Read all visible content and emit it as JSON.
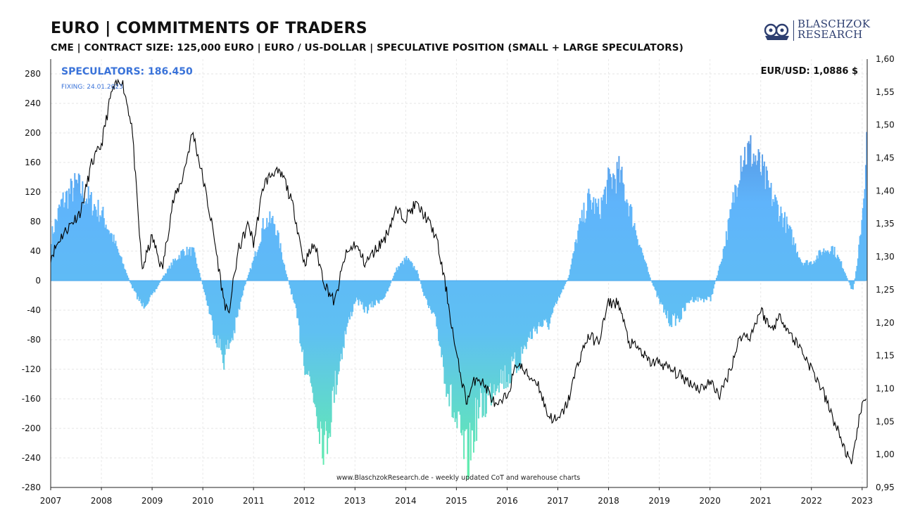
{
  "header": {
    "title": "EURO | COMMITMENTS OF TRADERS",
    "subtitle": "CME | CONTRACT SIZE: 125,000  EURO | EURO / US-DOLLAR | SPECULATIVE  POSITION (SMALL + LARGE SPECULATORS)"
  },
  "logo": {
    "line1": "BLASCHZOK",
    "line2": "RESEARCH"
  },
  "labels": {
    "speculators": "SPECULATORS: 186.450",
    "fixing": "FIXING: 24.01.2023",
    "eurusd": "EUR/USD: 1,0886 $",
    "footer": "www.BlaschzokResearch.de - weekly updated CoT and warehouse charts"
  },
  "colors": {
    "bar_top": "#4f7fce",
    "bar_mid": "#5fb4fb",
    "bar_bottom": "#62f2a6",
    "line": "#000000",
    "text_accent": "#3a73d9"
  },
  "chart_data": {
    "type": "bar",
    "title": "EURO | COMMITMENTS OF TRADERS",
    "xlabel": "",
    "ylabel": "",
    "x_ticks": [
      "2007",
      "2008",
      "2009",
      "2010",
      "2011",
      "2012",
      "2013",
      "2014",
      "2015",
      "2016",
      "2017",
      "2018",
      "2019",
      "2020",
      "2021",
      "2022",
      "2023"
    ],
    "y_left_ticks": [
      "280",
      "240",
      "200",
      "160",
      "120",
      "80",
      "40",
      "0",
      "-40",
      "-80",
      "-120",
      "-160",
      "-200",
      "-240",
      "-280"
    ],
    "y_right_ticks": [
      "1,60",
      "1,55",
      "1,50",
      "1,45",
      "1,40",
      "1,35",
      "1,30",
      "1,25",
      "1,20",
      "1,15",
      "1,10",
      "1,05",
      "1,00",
      "0,95"
    ],
    "ylim_left": [
      -280,
      300
    ],
    "ylim_right": [
      0.95,
      1.6
    ],
    "xlim": [
      2007.0,
      2023.1
    ],
    "grid": true,
    "series": [
      {
        "name": "SPECULATORS",
        "axis": "left",
        "kind": "bar",
        "points": [
          [
            2007.0,
            60
          ],
          [
            2007.2,
            105
          ],
          [
            2007.5,
            130
          ],
          [
            2007.8,
            105
          ],
          [
            2008.0,
            90
          ],
          [
            2008.2,
            60
          ],
          [
            2008.4,
            25
          ],
          [
            2008.6,
            -10
          ],
          [
            2008.8,
            -35
          ],
          [
            2009.0,
            -20
          ],
          [
            2009.2,
            5
          ],
          [
            2009.4,
            25
          ],
          [
            2009.6,
            40
          ],
          [
            2009.8,
            40
          ],
          [
            2010.0,
            -10
          ],
          [
            2010.2,
            -65
          ],
          [
            2010.4,
            -105
          ],
          [
            2010.6,
            -70
          ],
          [
            2010.8,
            -10
          ],
          [
            2011.0,
            30
          ],
          [
            2011.2,
            80
          ],
          [
            2011.4,
            80
          ],
          [
            2011.6,
            20
          ],
          [
            2011.8,
            -35
          ],
          [
            2012.0,
            -110
          ],
          [
            2012.2,
            -160
          ],
          [
            2012.4,
            -225
          ],
          [
            2012.6,
            -140
          ],
          [
            2012.8,
            -70
          ],
          [
            2013.0,
            -25
          ],
          [
            2013.2,
            -40
          ],
          [
            2013.4,
            -30
          ],
          [
            2013.6,
            -20
          ],
          [
            2013.8,
            15
          ],
          [
            2014.0,
            30
          ],
          [
            2014.2,
            15
          ],
          [
            2014.4,
            -30
          ],
          [
            2014.6,
            -60
          ],
          [
            2014.8,
            -140
          ],
          [
            2015.0,
            -200
          ],
          [
            2015.2,
            -245
          ],
          [
            2015.4,
            -180
          ],
          [
            2015.6,
            -160
          ],
          [
            2015.8,
            -130
          ],
          [
            2016.0,
            -130
          ],
          [
            2016.2,
            -110
          ],
          [
            2016.4,
            -80
          ],
          [
            2016.6,
            -60
          ],
          [
            2016.8,
            -60
          ],
          [
            2017.0,
            -25
          ],
          [
            2017.2,
            5
          ],
          [
            2017.4,
            70
          ],
          [
            2017.6,
            110
          ],
          [
            2017.8,
            95
          ],
          [
            2018.0,
            135
          ],
          [
            2018.2,
            145
          ],
          [
            2018.4,
            100
          ],
          [
            2018.6,
            50
          ],
          [
            2018.8,
            5
          ],
          [
            2019.0,
            -30
          ],
          [
            2019.2,
            -55
          ],
          [
            2019.4,
            -50
          ],
          [
            2019.6,
            -25
          ],
          [
            2019.8,
            -25
          ],
          [
            2020.0,
            -25
          ],
          [
            2020.2,
            25
          ],
          [
            2020.4,
            90
          ],
          [
            2020.6,
            170
          ],
          [
            2020.8,
            175
          ],
          [
            2021.0,
            150
          ],
          [
            2021.2,
            115
          ],
          [
            2021.4,
            90
          ],
          [
            2021.6,
            60
          ],
          [
            2021.8,
            25
          ],
          [
            2022.0,
            25
          ],
          [
            2022.2,
            40
          ],
          [
            2022.4,
            45
          ],
          [
            2022.6,
            20
          ],
          [
            2022.8,
            -15
          ],
          [
            2022.9,
            25
          ],
          [
            2023.0,
            100
          ],
          [
            2023.08,
            186
          ]
        ]
      },
      {
        "name": "EUR/USD",
        "axis": "right",
        "kind": "line",
        "points": [
          [
            2007.0,
            1.3
          ],
          [
            2007.2,
            1.33
          ],
          [
            2007.4,
            1.35
          ],
          [
            2007.6,
            1.37
          ],
          [
            2007.8,
            1.44
          ],
          [
            2008.0,
            1.47
          ],
          [
            2008.2,
            1.55
          ],
          [
            2008.4,
            1.57
          ],
          [
            2008.6,
            1.5
          ],
          [
            2008.8,
            1.28
          ],
          [
            2009.0,
            1.33
          ],
          [
            2009.2,
            1.28
          ],
          [
            2009.4,
            1.38
          ],
          [
            2009.6,
            1.42
          ],
          [
            2009.8,
            1.49
          ],
          [
            2010.0,
            1.42
          ],
          [
            2010.2,
            1.34
          ],
          [
            2010.4,
            1.24
          ],
          [
            2010.5,
            1.21
          ],
          [
            2010.7,
            1.31
          ],
          [
            2010.9,
            1.35
          ],
          [
            2011.0,
            1.32
          ],
          [
            2011.2,
            1.41
          ],
          [
            2011.4,
            1.43
          ],
          [
            2011.6,
            1.42
          ],
          [
            2011.8,
            1.37
          ],
          [
            2012.0,
            1.29
          ],
          [
            2012.2,
            1.32
          ],
          [
            2012.4,
            1.26
          ],
          [
            2012.6,
            1.23
          ],
          [
            2012.8,
            1.3
          ],
          [
            2013.0,
            1.32
          ],
          [
            2013.2,
            1.29
          ],
          [
            2013.4,
            1.31
          ],
          [
            2013.6,
            1.33
          ],
          [
            2013.8,
            1.37
          ],
          [
            2014.0,
            1.36
          ],
          [
            2014.2,
            1.38
          ],
          [
            2014.4,
            1.36
          ],
          [
            2014.6,
            1.33
          ],
          [
            2014.8,
            1.25
          ],
          [
            2015.0,
            1.15
          ],
          [
            2015.2,
            1.08
          ],
          [
            2015.4,
            1.12
          ],
          [
            2015.6,
            1.1
          ],
          [
            2015.8,
            1.07
          ],
          [
            2016.0,
            1.09
          ],
          [
            2016.2,
            1.14
          ],
          [
            2016.4,
            1.12
          ],
          [
            2016.6,
            1.11
          ],
          [
            2016.8,
            1.06
          ],
          [
            2017.0,
            1.05
          ],
          [
            2017.2,
            1.08
          ],
          [
            2017.4,
            1.14
          ],
          [
            2017.6,
            1.18
          ],
          [
            2017.8,
            1.17
          ],
          [
            2018.0,
            1.23
          ],
          [
            2018.2,
            1.23
          ],
          [
            2018.4,
            1.17
          ],
          [
            2018.6,
            1.16
          ],
          [
            2018.8,
            1.14
          ],
          [
            2019.0,
            1.14
          ],
          [
            2019.2,
            1.13
          ],
          [
            2019.4,
            1.12
          ],
          [
            2019.6,
            1.11
          ],
          [
            2019.8,
            1.1
          ],
          [
            2020.0,
            1.11
          ],
          [
            2020.2,
            1.09
          ],
          [
            2020.4,
            1.13
          ],
          [
            2020.6,
            1.18
          ],
          [
            2020.8,
            1.18
          ],
          [
            2021.0,
            1.22
          ],
          [
            2021.2,
            1.19
          ],
          [
            2021.4,
            1.21
          ],
          [
            2021.6,
            1.18
          ],
          [
            2021.8,
            1.16
          ],
          [
            2022.0,
            1.13
          ],
          [
            2022.2,
            1.1
          ],
          [
            2022.4,
            1.06
          ],
          [
            2022.6,
            1.02
          ],
          [
            2022.8,
            0.98
          ],
          [
            2022.9,
            1.04
          ],
          [
            2023.0,
            1.07
          ],
          [
            2023.08,
            1.09
          ]
        ]
      }
    ]
  }
}
